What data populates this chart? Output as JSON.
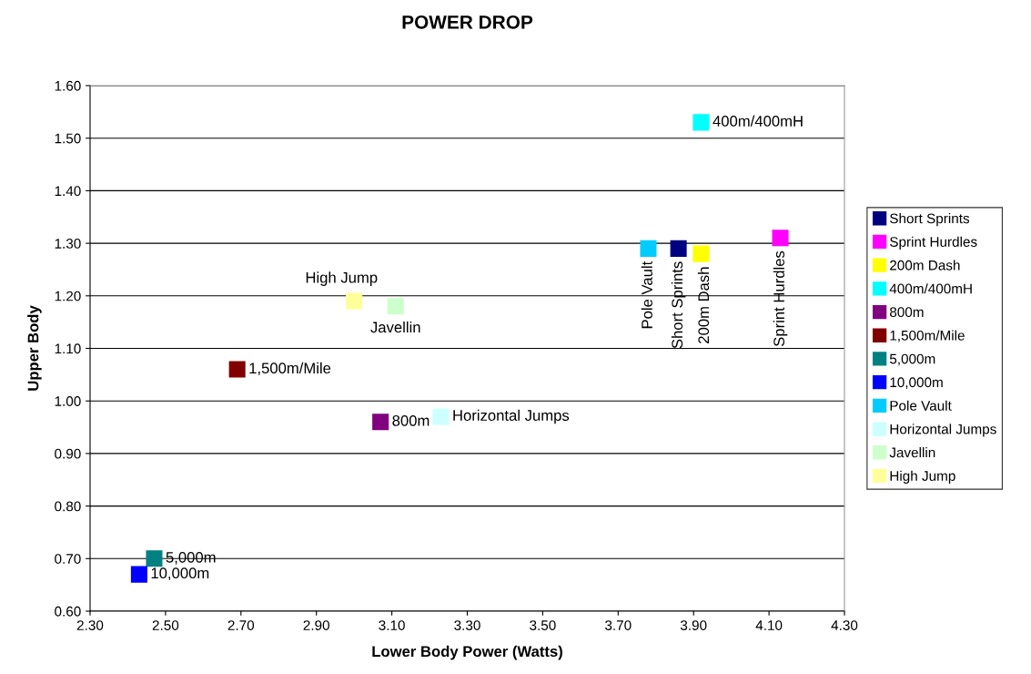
{
  "chart_data": {
    "type": "scatter",
    "title": "POWER DROP",
    "xlabel": "Lower Body Power (Watts)",
    "ylabel": "Upper Body",
    "xlim": [
      2.3,
      4.3
    ],
    "xticks": [
      {
        "value": 2.3,
        "label": "2.30"
      },
      {
        "value": 2.5,
        "label": "2.50"
      },
      {
        "value": 2.7,
        "label": "2.70"
      },
      {
        "value": 2.9,
        "label": "2.90"
      },
      {
        "value": 3.1,
        "label": "3.10"
      },
      {
        "value": 3.3,
        "label": "3.30"
      },
      {
        "value": 3.5,
        "label": "3.50"
      },
      {
        "value": 3.7,
        "label": "3.70"
      },
      {
        "value": 3.9,
        "label": "3.90"
      },
      {
        "value": 4.1,
        "label": "4.10"
      },
      {
        "value": 4.3,
        "label": "4.30"
      }
    ],
    "ylim": [
      0.6,
      1.6
    ],
    "yticks": [
      {
        "value": 0.6,
        "label": "0.60"
      },
      {
        "value": 0.7,
        "label": "0.70"
      },
      {
        "value": 0.8,
        "label": "0.80"
      },
      {
        "value": 0.9,
        "label": "0.90"
      },
      {
        "value": 1.0,
        "label": "1.00"
      },
      {
        "value": 1.1,
        "label": "1.10"
      },
      {
        "value": 1.2,
        "label": "1.20"
      },
      {
        "value": 1.3,
        "label": "1.30"
      },
      {
        "value": 1.4,
        "label": "1.40"
      },
      {
        "value": 1.5,
        "label": "1.50"
      },
      {
        "value": 1.6,
        "label": "1.60"
      }
    ],
    "grid": "y",
    "legend": "right",
    "marker": "square",
    "series": [
      {
        "name": "Short Sprints",
        "color": "#000080",
        "x": [
          3.86
        ],
        "values": [
          1.29
        ]
      },
      {
        "name": "Sprint Hurdles",
        "color": "#ff00ff",
        "x": [
          4.13
        ],
        "values": [
          1.31
        ]
      },
      {
        "name": "200m Dash",
        "color": "#ffff00",
        "x": [
          3.92
        ],
        "values": [
          1.28
        ]
      },
      {
        "name": "400m/400mH",
        "color": "#00ffff",
        "x": [
          3.92
        ],
        "values": [
          1.53
        ]
      },
      {
        "name": "800m",
        "color": "#800080",
        "x": [
          3.07
        ],
        "values": [
          0.96
        ]
      },
      {
        "name": "1,500m/Mile",
        "color": "#800000",
        "x": [
          2.69
        ],
        "values": [
          1.06
        ]
      },
      {
        "name": "5,000m",
        "color": "#008080",
        "x": [
          2.47
        ],
        "values": [
          0.7
        ]
      },
      {
        "name": "10,000m",
        "color": "#0000ff",
        "x": [
          2.43
        ],
        "values": [
          0.67
        ]
      },
      {
        "name": "Pole Vault",
        "color": "#00ccff",
        "x": [
          3.78
        ],
        "values": [
          1.29
        ]
      },
      {
        "name": "Horizontal Jumps",
        "color": "#ccffff",
        "x": [
          3.23
        ],
        "values": [
          0.97
        ]
      },
      {
        "name": "Javellin",
        "color": "#ccffcc",
        "x": [
          3.11
        ],
        "values": [
          1.18
        ]
      },
      {
        "name": "High Jump",
        "color": "#ffff99",
        "x": [
          3.0
        ],
        "values": [
          1.19
        ]
      }
    ]
  }
}
